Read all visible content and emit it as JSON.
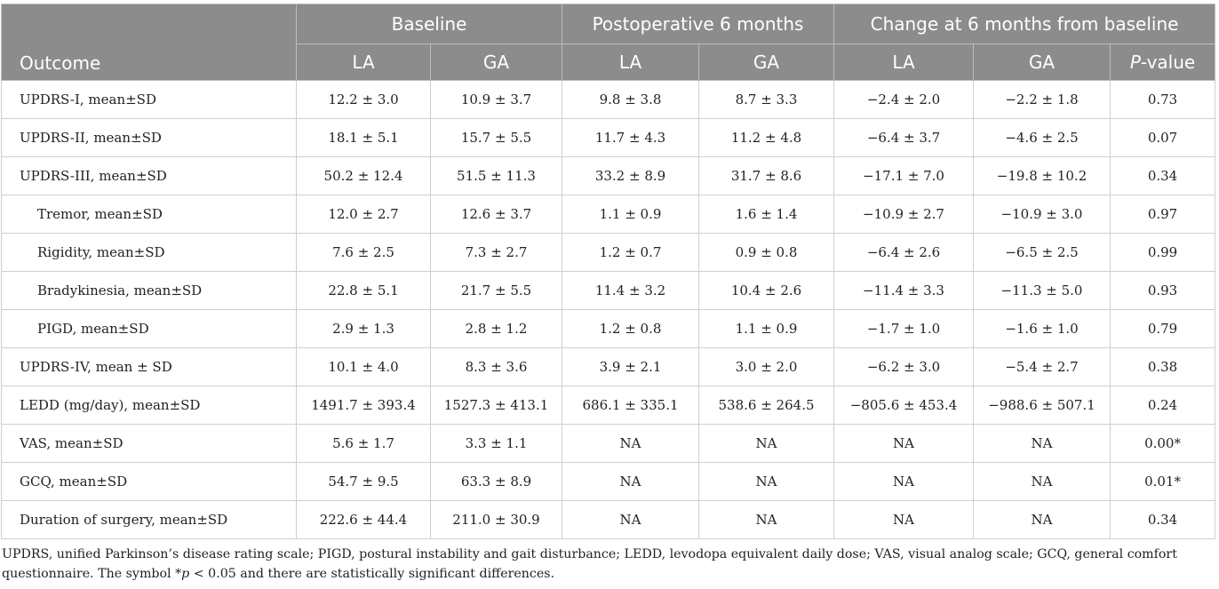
{
  "header": {
    "groups": [
      "Baseline",
      "Postoperative 6 months",
      "Change at 6 months from baseline"
    ],
    "outcome_label": "Outcome",
    "sub": [
      "LA",
      "GA",
      "LA",
      "GA",
      "LA",
      "GA"
    ],
    "pvalue_prefix": "P",
    "pvalue_suffix": "-value"
  },
  "rows": [
    {
      "label": "UPDRS-I, mean±SD",
      "indent": false,
      "cells": [
        "12.2 ± 3.0",
        "10.9 ± 3.7",
        "9.8 ± 3.8",
        "8.7 ± 3.3",
        "−2.4 ± 2.0",
        "−2.2 ± 1.8",
        "0.73"
      ]
    },
    {
      "label": "UPDRS-II, mean±SD",
      "indent": false,
      "cells": [
        "18.1 ± 5.1",
        "15.7 ± 5.5",
        "11.7 ± 4.3",
        "11.2 ± 4.8",
        "−6.4 ± 3.7",
        "−4.6 ± 2.5",
        "0.07"
      ]
    },
    {
      "label": "UPDRS-III, mean±SD",
      "indent": false,
      "cells": [
        "50.2 ± 12.4",
        "51.5 ± 11.3",
        "33.2 ± 8.9",
        "31.7 ± 8.6",
        "−17.1 ± 7.0",
        "−19.8 ± 10.2",
        "0.34"
      ]
    },
    {
      "label": "Tremor, mean±SD",
      "indent": true,
      "cells": [
        "12.0 ± 2.7",
        "12.6 ± 3.7",
        "1.1 ± 0.9",
        "1.6 ± 1.4",
        "−10.9 ± 2.7",
        "−10.9 ± 3.0",
        "0.97"
      ]
    },
    {
      "label": "Rigidity, mean±SD",
      "indent": true,
      "cells": [
        "7.6 ± 2.5",
        "7.3 ± 2.7",
        "1.2 ± 0.7",
        "0.9 ± 0.8",
        "−6.4 ± 2.6",
        "−6.5 ± 2.5",
        "0.99"
      ]
    },
    {
      "label": "Bradykinesia, mean±SD",
      "indent": true,
      "cells": [
        "22.8 ± 5.1",
        "21.7 ± 5.5",
        "11.4 ± 3.2",
        "10.4 ± 2.6",
        "−11.4 ± 3.3",
        "−11.3 ± 5.0",
        "0.93"
      ]
    },
    {
      "label": "PIGD, mean±SD",
      "indent": true,
      "cells": [
        "2.9 ± 1.3",
        "2.8 ± 1.2",
        "1.2 ± 0.8",
        "1.1 ± 0.9",
        "−1.7 ± 1.0",
        "−1.6 ± 1.0",
        "0.79"
      ]
    },
    {
      "label": "UPDRS-IV, mean ± SD",
      "indent": false,
      "cells": [
        "10.1 ± 4.0",
        "8.3 ± 3.6",
        "3.9 ± 2.1",
        "3.0 ± 2.0",
        "−6.2 ± 3.0",
        "−5.4 ± 2.7",
        "0.38"
      ]
    },
    {
      "label": "LEDD (mg/day), mean±SD",
      "indent": false,
      "cells": [
        "1491.7 ± 393.4",
        "1527.3 ± 413.1",
        "686.1 ± 335.1",
        "538.6 ± 264.5",
        "−805.6 ± 453.4",
        "−988.6 ± 507.1",
        "0.24"
      ]
    },
    {
      "label": "VAS, mean±SD",
      "indent": false,
      "cells": [
        "5.6 ± 1.7",
        "3.3 ± 1.1",
        "NA",
        "NA",
        "NA",
        "NA",
        "0.00*"
      ]
    },
    {
      "label": "GCQ, mean±SD",
      "indent": false,
      "cells": [
        "54.7 ± 9.5",
        "63.3 ± 8.9",
        "NA",
        "NA",
        "NA",
        "NA",
        "0.01*"
      ]
    },
    {
      "label": "Duration of surgery, mean±SD",
      "indent": false,
      "cells": [
        "222.6 ± 44.4",
        "211.0 ± 30.9",
        "NA",
        "NA",
        "NA",
        "NA",
        "0.34"
      ]
    }
  ],
  "footnote": {
    "text": "UPDRS, unified Parkinson’s disease rating scale; PIGD, postural instability and gait disturbance; LEDD, levodopa equivalent daily dose; VAS, visual analog scale; GCQ, general comfort questionnaire. The symbol *",
    "p_italic": "p",
    "text_end": " < 0.05 and there are statistically significant differences."
  }
}
